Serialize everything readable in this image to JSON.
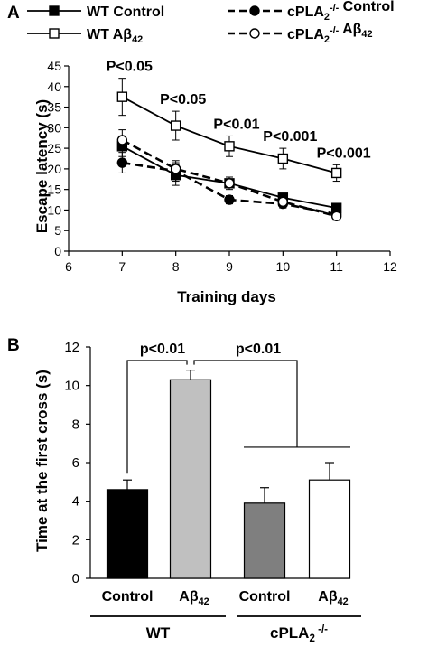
{
  "chart_data": [
    {
      "panel_label": "A",
      "type": "line",
      "xlabel": "Training days",
      "ylabel": "Escape latency (s)",
      "xlim": [
        6,
        12
      ],
      "ylim": [
        0,
        45
      ],
      "xticks": [
        6,
        7,
        8,
        9,
        10,
        11,
        12
      ],
      "yticks": [
        0,
        5,
        10,
        15,
        20,
        25,
        30,
        35,
        40,
        45
      ],
      "x": [
        7,
        8,
        9,
        10,
        11
      ],
      "legend_position": "top",
      "series": [
        {
          "name": "WT Control",
          "values": [
            25.5,
            18.5,
            16.5,
            13.0,
            10.5
          ],
          "errors": [
            2.5,
            2.5,
            1.5,
            1.0,
            1.0
          ],
          "marker": "filled-square",
          "line": "solid",
          "color": "#000000"
        },
        {
          "name": "WT Aβ42",
          "values": [
            37.5,
            30.5,
            25.5,
            22.5,
            19.0
          ],
          "errors": [
            4.5,
            3.5,
            2.5,
            2.5,
            2.0
          ],
          "marker": "open-square",
          "line": "solid",
          "color": "#000000"
        },
        {
          "name": "cPLA2-/- Control",
          "values": [
            21.5,
            19.5,
            12.5,
            11.5,
            9.0
          ],
          "errors": [
            2.5,
            2.5,
            1.0,
            1.0,
            1.0
          ],
          "marker": "filled-circle",
          "line": "dashed",
          "color": "#000000"
        },
        {
          "name": "cPLA2-/- Aβ42",
          "values": [
            27.0,
            20.0,
            16.5,
            12.0,
            8.5
          ],
          "errors": [
            2.5,
            1.5,
            1.0,
            1.0,
            1.0
          ],
          "marker": "open-circle",
          "line": "dashed",
          "color": "#000000"
        }
      ],
      "annotations": [
        {
          "text": "P<0.05",
          "x": 7
        },
        {
          "text": "P<0.05",
          "x": 8
        },
        {
          "text": "P<0.01",
          "x": 9
        },
        {
          "text": "P<0.001",
          "x": 10
        },
        {
          "text": "P<0.001",
          "x": 11
        }
      ]
    },
    {
      "panel_label": "B",
      "type": "bar",
      "ylabel": "Time at the first cross (s)",
      "ylim": [
        0,
        12
      ],
      "yticks": [
        0,
        2,
        4,
        6,
        8,
        10,
        12
      ],
      "categories": [
        "Control",
        "Aβ42",
        "Control",
        "Aβ42"
      ],
      "groups": [
        {
          "label": "WT",
          "categories": [
            0,
            1
          ]
        },
        {
          "label": "cPLA2 -/-",
          "categories": [
            2,
            3
          ]
        }
      ],
      "values": [
        4.6,
        10.3,
        3.9,
        5.1
      ],
      "errors": [
        0.5,
        0.5,
        0.8,
        0.9
      ],
      "colors": [
        "#000000",
        "#c0c0c0",
        "#7f7f7f",
        "#ffffff"
      ],
      "annotations": [
        {
          "text": "p<0.01",
          "between": [
            0,
            1
          ]
        },
        {
          "text": "p<0.01",
          "between": [
            1,
            "2-3"
          ]
        }
      ]
    }
  ]
}
